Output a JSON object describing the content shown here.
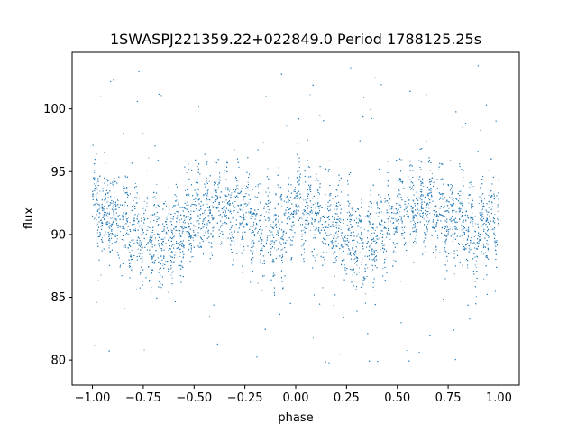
{
  "chart_data": {
    "type": "scatter",
    "title": "1SWASPJ221359.22+022849.0 Period 1788125.25s",
    "xlabel": "phase",
    "ylabel": "flux",
    "xlim": [
      -1.1,
      1.1
    ],
    "ylim": [
      78.0,
      104.5
    ],
    "x_ticks": [
      -1.0,
      -0.75,
      -0.5,
      -0.25,
      0.0,
      0.25,
      0.5,
      0.75,
      1.0
    ],
    "x_tick_labels": [
      "−1.00",
      "−0.75",
      "−0.50",
      "−0.25",
      "0.00",
      "0.25",
      "0.50",
      "0.75",
      "1.00"
    ],
    "y_ticks": [
      80,
      85,
      90,
      95,
      100
    ],
    "y_tick_labels": [
      "80",
      "85",
      "90",
      "95",
      "100"
    ],
    "grid": false,
    "legend": "none",
    "marker_color": "#1f77b4",
    "series": [
      {
        "x_range": [
          -1.0,
          1.0
        ],
        "profile_phase": [
          0.0,
          0.1,
          0.2,
          0.3,
          0.4,
          0.5,
          0.6,
          0.7,
          0.8,
          0.9,
          1.0
        ],
        "profile_flux_center": [
          92.0,
          91.5,
          90.5,
          89.5,
          90.0,
          91.5,
          92.3,
          92.0,
          91.0,
          90.0,
          92.0
        ],
        "profile_flux_spread": [
          2.5,
          3.0,
          3.0,
          3.2,
          3.0,
          2.8,
          2.5,
          2.8,
          3.0,
          3.2,
          2.5
        ],
        "flux_outlier_range": [
          79.5,
          103.5
        ]
      }
    ]
  }
}
